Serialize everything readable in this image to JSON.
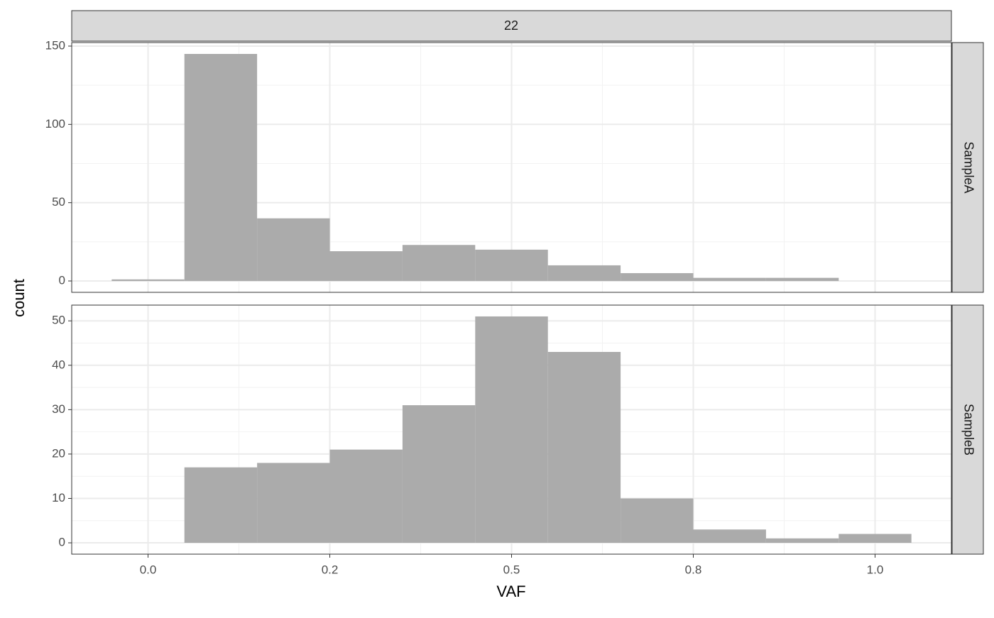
{
  "chart_data": {
    "type": "histogram",
    "facet": "22",
    "x_label": "VAF",
    "y_label": "count",
    "color": "#ababab",
    "bins": [
      -0.05,
      0.05,
      0.15,
      0.25,
      0.35,
      0.45,
      0.55,
      0.65,
      0.75,
      0.85,
      0.95,
      1.05
    ],
    "xlim": [
      -0.105,
      1.105
    ],
    "xticks": [
      {
        "value": 0,
        "label": "0.0"
      },
      {
        "value": 0.25,
        "label": "0.2"
      },
      0.5,
      {
        "value": 0.75,
        "label": "0.8"
      },
      {
        "value": 1,
        "label": "1.0"
      }
    ],
    "grid": true,
    "panels": [
      {
        "name": "SampleA",
        "values": [
          1,
          145,
          40,
          19,
          23,
          20,
          10,
          5,
          2,
          2,
          0
        ],
        "ylim": [
          -7.25,
          152.25
        ],
        "yticks": [
          0,
          50,
          100,
          150
        ]
      },
      {
        "name": "SampleB",
        "values": [
          0,
          17,
          18,
          21,
          31,
          51,
          43,
          10,
          3,
          1,
          2
        ],
        "ylim": [
          -2.55,
          53.55
        ],
        "yticks": [
          0,
          10,
          20,
          30,
          40,
          50
        ]
      }
    ]
  }
}
